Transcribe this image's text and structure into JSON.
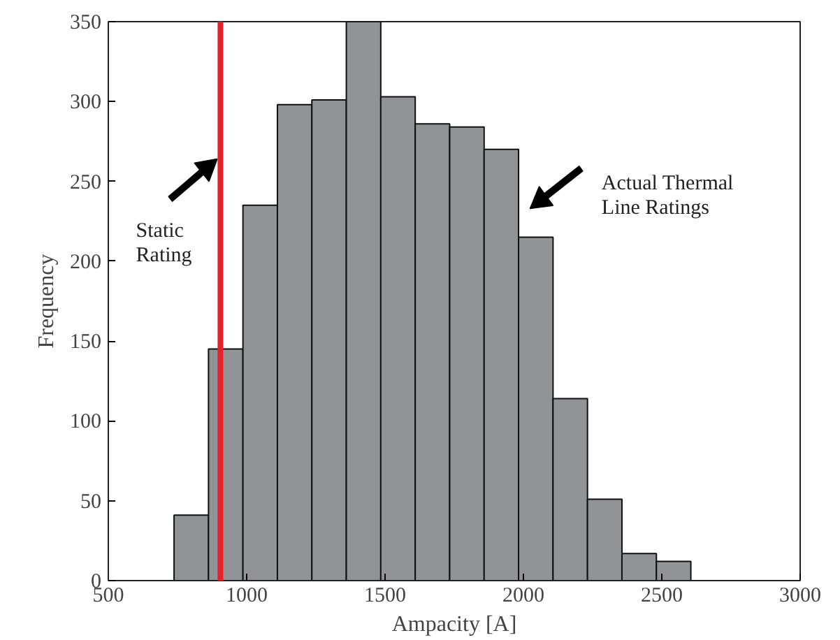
{
  "chart_data": {
    "type": "histogram",
    "xlabel": "Ampacity [A]",
    "ylabel": "Frequency",
    "bins": [
      737.5,
      862,
      986.5,
      1111,
      1235.5,
      1360,
      1484.5,
      1609,
      1733.5,
      1858,
      1982.5,
      2107,
      2231.5,
      2356,
      2480.5,
      2605
    ],
    "values": [
      41,
      145,
      235,
      298,
      301,
      350,
      303,
      286,
      284,
      270,
      215,
      114,
      51,
      17,
      12
    ],
    "color": "#929396",
    "xlim": [
      500,
      3000
    ],
    "ylim": [
      0,
      350
    ],
    "xticks": [
      500,
      1000,
      1500,
      2000,
      2500,
      3000
    ],
    "yticks": [
      0,
      50,
      100,
      150,
      200,
      250,
      300,
      350
    ],
    "ref_lines": [
      {
        "axis": "x",
        "value": 905,
        "color": "#e8202a"
      }
    ],
    "annotations": [
      "Static\nRating",
      "Actual Thermal\nLine Ratings"
    ],
    "grid": false
  }
}
